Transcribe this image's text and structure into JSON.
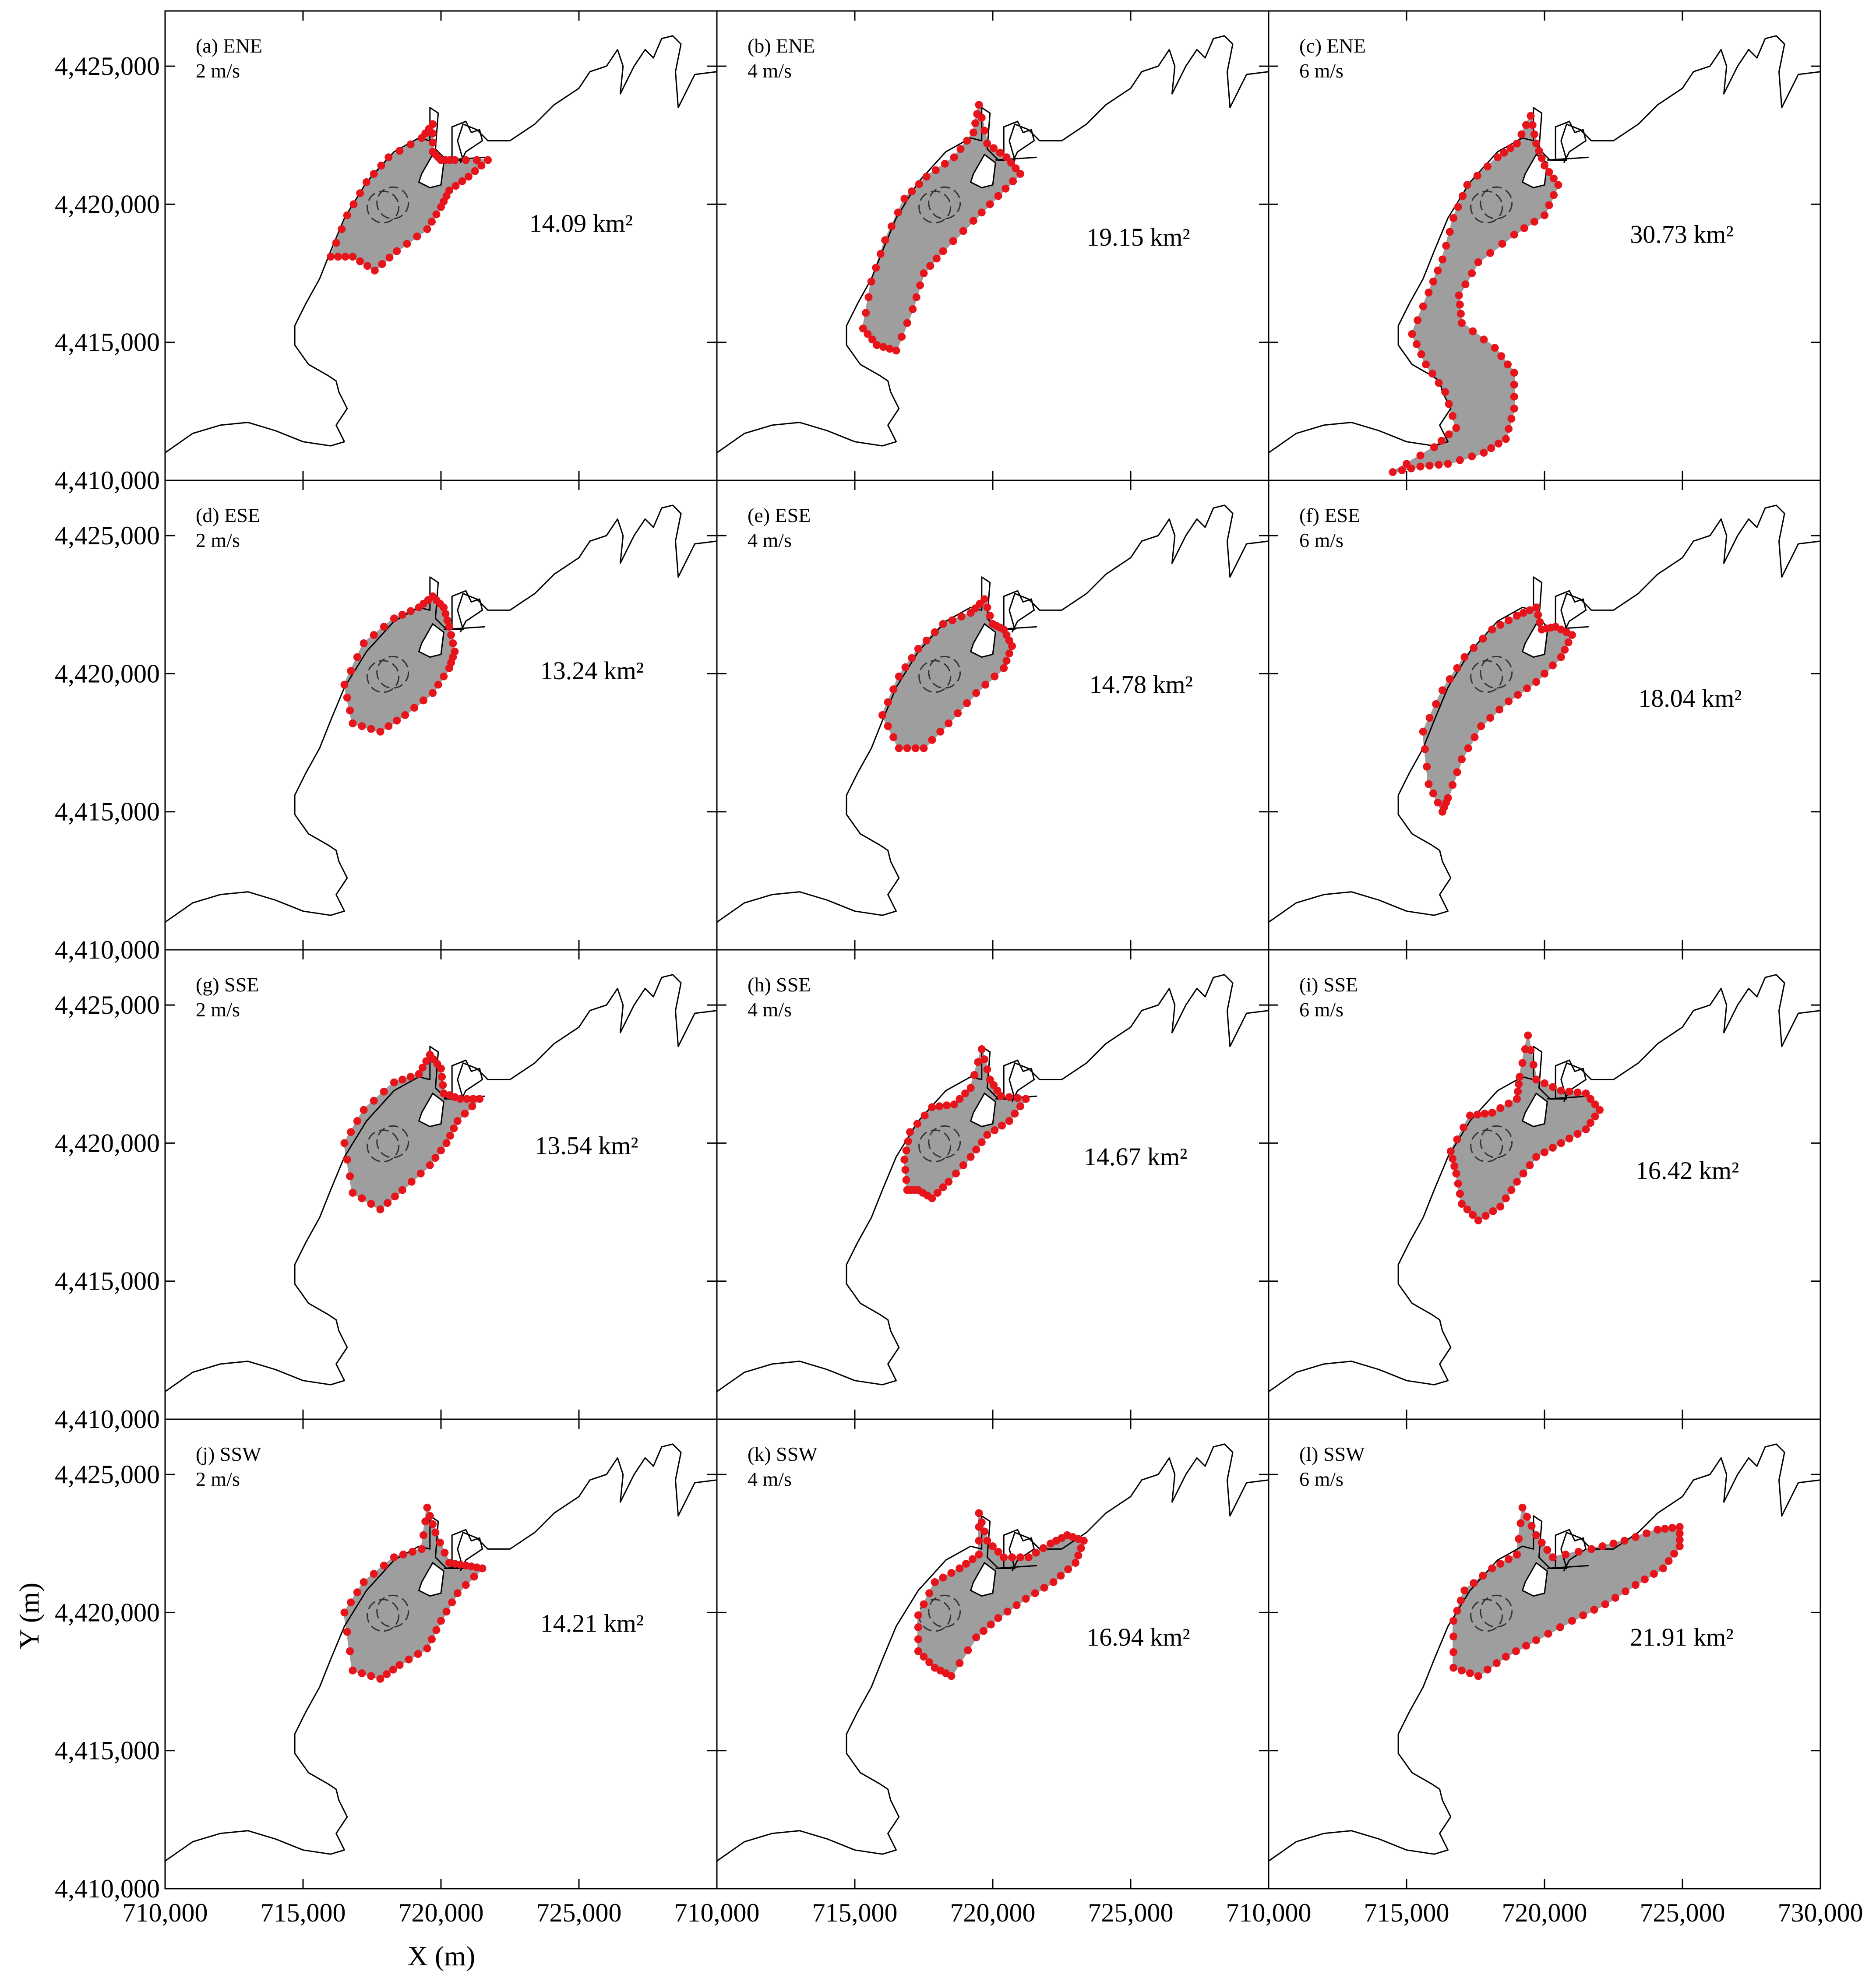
{
  "chart_data": {
    "type": "scatter",
    "xlabel": "X (m)",
    "ylabel": "Y (m)",
    "xlim": [
      710000,
      730000
    ],
    "ylim": [
      4410000,
      4427000
    ],
    "x_tick_labels": [
      "710,000",
      "715,000",
      "720,000",
      "725,000",
      "710,000",
      "715,000",
      "720,000",
      "725,000",
      "710,000",
      "715,000",
      "720,000",
      "725,000",
      "730,000"
    ],
    "y_tick_labels": [
      "4,410,000",
      "4,415,000",
      "4,420,000",
      "4,425,000"
    ],
    "colors": {
      "boundary_points": "#e8141c",
      "trajectories": "#9e9e9e",
      "coastline": "#000000"
    },
    "panels": [
      {
        "id": "a",
        "label": "(a) ENE",
        "speed": "2 m/s",
        "area_label": "14.09 km²",
        "area_km2": 14.09,
        "label_pos": [
          723200,
          4419000
        ]
      },
      {
        "id": "b",
        "label": "(b) ENE",
        "speed": "4 m/s",
        "area_label": "19.15 km²",
        "area_km2": 19.15,
        "label_pos": [
          723400,
          4418500
        ]
      },
      {
        "id": "c",
        "label": "(c) ENE",
        "speed": "6 m/s",
        "area_label": "30.73 km²",
        "area_km2": 30.73,
        "label_pos": [
          723100,
          4418600
        ]
      },
      {
        "id": "d",
        "label": "(d) ESE",
        "speed": "2 m/s",
        "area_label": "13.24 km²",
        "area_km2": 13.24,
        "label_pos": [
          723600,
          4419800
        ]
      },
      {
        "id": "e",
        "label": "(e) ESE",
        "speed": "4 m/s",
        "area_label": "14.78 km²",
        "area_km2": 14.78,
        "label_pos": [
          723500,
          4419300
        ]
      },
      {
        "id": "f",
        "label": "(f) ESE",
        "speed": "6 m/s",
        "area_label": "18.04 km²",
        "area_km2": 18.04,
        "label_pos": [
          723400,
          4418800
        ]
      },
      {
        "id": "g",
        "label": "(g) SSE",
        "speed": "2 m/s",
        "area_label": "13.54 km²",
        "area_km2": 13.54,
        "label_pos": [
          723400,
          4419600
        ]
      },
      {
        "id": "h",
        "label": "(h) SSE",
        "speed": "4 m/s",
        "area_label": "14.67 km²",
        "area_km2": 14.67,
        "label_pos": [
          723300,
          4419200
        ]
      },
      {
        "id": "i",
        "label": "(i) SSE",
        "speed": "6 m/s",
        "area_label": "16.42 km²",
        "area_km2": 16.42,
        "label_pos": [
          723300,
          4418700
        ]
      },
      {
        "id": "j",
        "label": "(j) SSW",
        "speed": "2 m/s",
        "area_label": "14.21 km²",
        "area_km2": 14.21,
        "label_pos": [
          723600,
          4419300
        ]
      },
      {
        "id": "k",
        "label": "(k) SSW",
        "speed": "4 m/s",
        "area_label": "16.94 km²",
        "area_km2": 16.94,
        "label_pos": [
          723400,
          4418800
        ]
      },
      {
        "id": "l",
        "label": "(l) SSW",
        "speed": "6 m/s",
        "area_label": "21.91 km²",
        "area_km2": 21.91,
        "label_pos": [
          723100,
          4418800
        ]
      }
    ]
  }
}
